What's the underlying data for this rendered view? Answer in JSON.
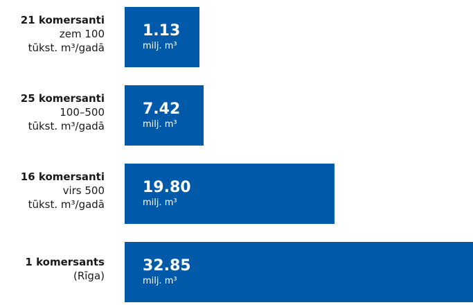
{
  "colors": {
    "bar": "#005aa9",
    "bar_text": "#ffffff",
    "label_text": "#1a1a1a",
    "background": "#ffffff"
  },
  "chart_data": {
    "type": "bar",
    "orientation": "horizontal",
    "title": "",
    "xlabel": "",
    "ylabel": "",
    "xlim": [
      0,
      32.85
    ],
    "grid": false,
    "legend": "none",
    "unit_label": "milj. m³",
    "categories": [
      {
        "name": "21 komersanti",
        "sub": [
          "zem 100",
          "tūkst. m³/gadā"
        ]
      },
      {
        "name": "25 komersanti",
        "sub": [
          "100–500",
          "tūkst. m³/gadā"
        ]
      },
      {
        "name": "16 komersanti",
        "sub": [
          "virs 500",
          "tūkst. m³/gadā"
        ]
      },
      {
        "name": "1 komersants",
        "sub": [
          "(Rīga)"
        ]
      }
    ],
    "values": [
      1.13,
      7.42,
      19.8,
      32.85
    ],
    "value_labels": [
      "1.13",
      "7.42",
      "19.80",
      "32.85"
    ]
  }
}
